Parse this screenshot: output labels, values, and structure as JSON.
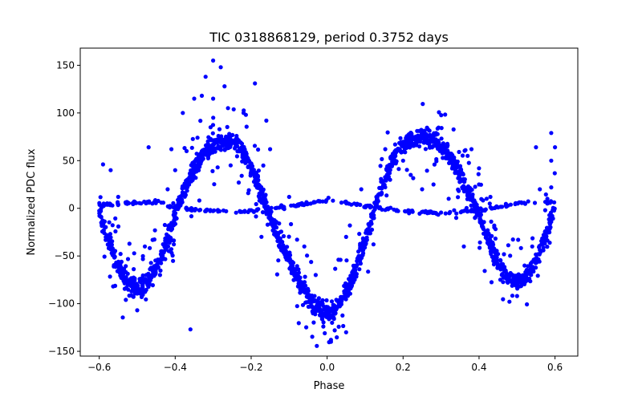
{
  "chart_data": {
    "type": "scatter",
    "title": "TIC 0318868129, period 0.3752 days",
    "xlabel": "Phase",
    "ylabel": "Normalized PDC flux",
    "xlim": [
      -0.65,
      0.66
    ],
    "ylim": [
      -155,
      168
    ],
    "xticks": [
      -0.6,
      -0.4,
      -0.2,
      0.0,
      0.2,
      0.4,
      0.6
    ],
    "xtick_labels": [
      "−0.6",
      "−0.4",
      "−0.2",
      "0.0",
      "0.2",
      "0.4",
      "0.6"
    ],
    "yticks": [
      -150,
      -100,
      -50,
      0,
      50,
      100,
      150
    ],
    "ytick_labels": [
      "−150",
      "−100",
      "−50",
      "0",
      "50",
      "100",
      "150"
    ],
    "grid": false,
    "marker_color": "#0000ff",
    "series": [
      {
        "name": "",
        "main_curve": [
          [
            -0.6,
            0
          ],
          [
            -0.58,
            -28
          ],
          [
            -0.56,
            -52
          ],
          [
            -0.54,
            -70
          ],
          [
            -0.52,
            -80
          ],
          [
            -0.5,
            -83
          ],
          [
            -0.48,
            -80
          ],
          [
            -0.46,
            -70
          ],
          [
            -0.44,
            -54
          ],
          [
            -0.42,
            -32
          ],
          [
            -0.4,
            -8
          ],
          [
            -0.38,
            15
          ],
          [
            -0.36,
            33
          ],
          [
            -0.34,
            48
          ],
          [
            -0.32,
            60
          ],
          [
            -0.3,
            67
          ],
          [
            -0.28,
            70
          ],
          [
            -0.26,
            71
          ],
          [
            -0.24,
            68
          ],
          [
            -0.22,
            58
          ],
          [
            -0.2,
            42
          ],
          [
            -0.18,
            22
          ],
          [
            -0.16,
            2
          ],
          [
            -0.14,
            -18
          ],
          [
            -0.12,
            -38
          ],
          [
            -0.1,
            -56
          ],
          [
            -0.08,
            -72
          ],
          [
            -0.06,
            -86
          ],
          [
            -0.04,
            -98
          ],
          [
            -0.02,
            -106
          ],
          [
            0.0,
            -110
          ],
          [
            0.02,
            -106
          ],
          [
            0.04,
            -95
          ],
          [
            0.06,
            -78
          ],
          [
            0.08,
            -58
          ],
          [
            0.1,
            -34
          ],
          [
            0.12,
            -8
          ],
          [
            0.14,
            18
          ],
          [
            0.16,
            40
          ],
          [
            0.18,
            57
          ],
          [
            0.2,
            67
          ],
          [
            0.22,
            72
          ],
          [
            0.24,
            74
          ],
          [
            0.26,
            74
          ],
          [
            0.28,
            72
          ],
          [
            0.3,
            66
          ],
          [
            0.32,
            56
          ],
          [
            0.34,
            42
          ],
          [
            0.36,
            26
          ],
          [
            0.38,
            10
          ],
          [
            0.4,
            -8
          ],
          [
            0.42,
            -28
          ],
          [
            0.44,
            -48
          ],
          [
            0.46,
            -64
          ],
          [
            0.48,
            -74
          ],
          [
            0.5,
            -78
          ],
          [
            0.52,
            -74
          ],
          [
            0.54,
            -62
          ],
          [
            0.56,
            -46
          ],
          [
            0.58,
            -24
          ],
          [
            0.6,
            -2
          ]
        ],
        "flat_band": [
          [
            -0.6,
            4
          ],
          [
            -0.5,
            6
          ],
          [
            -0.45,
            7
          ],
          [
            -0.4,
            0
          ],
          [
            -0.3,
            -3
          ],
          [
            -0.2,
            -3
          ],
          [
            -0.1,
            2
          ],
          [
            -0.04,
            6
          ],
          [
            0.0,
            9
          ],
          [
            0.04,
            7
          ],
          [
            0.1,
            2
          ],
          [
            0.2,
            -3
          ],
          [
            0.3,
            -5
          ],
          [
            0.4,
            -2
          ],
          [
            0.5,
            5
          ],
          [
            0.6,
            7
          ]
        ],
        "outliers": [
          [
            -0.36,
            -127
          ],
          [
            -0.32,
            138
          ],
          [
            -0.3,
            155
          ],
          [
            -0.28,
            148
          ],
          [
            -0.33,
            118
          ],
          [
            -0.3,
            115
          ],
          [
            -0.27,
            128
          ],
          [
            -0.22,
            100
          ],
          [
            -0.19,
            131
          ],
          [
            -0.16,
            92
          ],
          [
            -0.15,
            62
          ],
          [
            -0.37,
            60
          ],
          [
            -0.4,
            40
          ],
          [
            -0.42,
            20
          ],
          [
            -0.38,
            100
          ],
          [
            -0.35,
            115
          ],
          [
            -0.41,
            62
          ],
          [
            -0.46,
            5
          ],
          [
            -0.48,
            -40
          ],
          [
            -0.44,
            -70
          ],
          [
            -0.55,
            12
          ],
          [
            -0.57,
            40
          ],
          [
            -0.59,
            46
          ],
          [
            -0.54,
            -65
          ],
          [
            -0.5,
            -107
          ],
          [
            -0.53,
            -96
          ],
          [
            -0.47,
            64
          ],
          [
            -0.1,
            12
          ],
          [
            -0.06,
            -40
          ],
          [
            -0.03,
            -70
          ],
          [
            0.03,
            -54
          ],
          [
            0.05,
            -30
          ],
          [
            0.06,
            -18
          ],
          [
            0.09,
            20
          ],
          [
            0.01,
            -140
          ],
          [
            0.02,
            -128
          ],
          [
            -0.01,
            -124
          ],
          [
            0.05,
            -130
          ],
          [
            0.2,
            50
          ],
          [
            0.22,
            35
          ],
          [
            0.25,
            20
          ],
          [
            0.28,
            25
          ],
          [
            0.32,
            10
          ],
          [
            0.34,
            -10
          ],
          [
            0.36,
            -40
          ],
          [
            0.37,
            55
          ],
          [
            0.38,
            62
          ],
          [
            0.4,
            42
          ],
          [
            0.42,
            10
          ],
          [
            0.44,
            -20
          ],
          [
            0.46,
            -70
          ],
          [
            0.48,
            -98
          ],
          [
            0.5,
            -92
          ],
          [
            0.52,
            -60
          ],
          [
            0.54,
            -40
          ],
          [
            0.55,
            64
          ],
          [
            0.56,
            20
          ],
          [
            0.58,
            5
          ],
          [
            0.59,
            22
          ],
          [
            0.59,
            50
          ],
          [
            0.6,
            64
          ],
          [
            0.59,
            79
          ],
          [
            0.58,
            10
          ],
          [
            0.4,
            25
          ],
          [
            0.43,
            12
          ]
        ]
      }
    ]
  }
}
